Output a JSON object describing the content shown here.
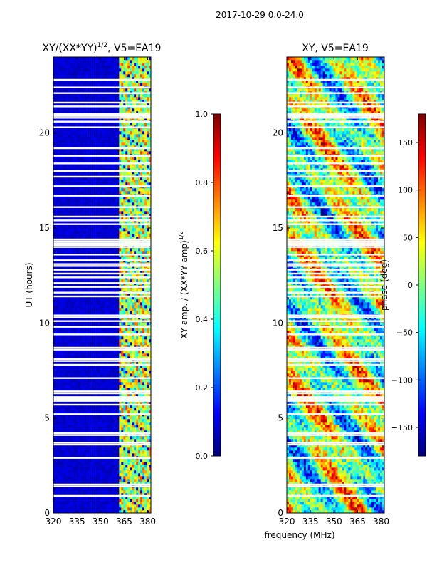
{
  "suptitle": "2017-10-29 0.0-24.0",
  "shared_xlabel": "frequency (MHz)",
  "colors": {
    "jet_stops": [
      "#00007f",
      "#0000ff",
      "#007fff",
      "#00ffff",
      "#7fff7f",
      "#ffff00",
      "#ff7f00",
      "#ff0000",
      "#7f0000"
    ],
    "gap": "#ffffff",
    "frame": "#000000"
  },
  "chart_data": [
    {
      "type": "heatmap",
      "title": "XY/(XX*YY)",
      "title_exponent": "1/2",
      "title_suffix": ", V5=EA19",
      "xlabel": "",
      "ylabel": "UT (hours)",
      "xlim": [
        320,
        382
      ],
      "ylim": [
        0,
        24
      ],
      "x_ticks": [
        320,
        335,
        350,
        365,
        380
      ],
      "y_ticks": [
        0,
        5,
        10,
        15,
        20
      ],
      "grid": false,
      "colorbar": {
        "label": "XY amp. / (XX*YY amp)",
        "label_exponent": "1/2",
        "range": [
          0.0,
          1.0
        ],
        "ticks": [
          "0.0",
          "0.2",
          "0.4",
          "0.6",
          "0.8",
          "1.0"
        ],
        "colormap": "jet"
      },
      "description_values": {
        "background_level": 0.05,
        "active_band_mhz": [
          362,
          382
        ],
        "active_level_range": [
          0.2,
          0.85
        ]
      }
    },
    {
      "type": "heatmap",
      "title": "XY, V5=EA19",
      "xlabel": "frequency (MHz)",
      "ylabel": "",
      "xlim": [
        320,
        382
      ],
      "ylim": [
        0,
        24
      ],
      "x_ticks": [
        320,
        335,
        350,
        365,
        380
      ],
      "y_ticks": [
        0,
        5,
        10,
        15,
        20
      ],
      "grid": false,
      "colorbar": {
        "label": "phase (deg)",
        "range": [
          -180,
          180
        ],
        "ticks": [
          "−150",
          "−100",
          "−50",
          "0",
          "50",
          "100",
          "150"
        ],
        "colormap": "jet"
      }
    }
  ],
  "flagged_gaps_hours": [
    0.9,
    1.4,
    1.5,
    2.9,
    3.6,
    3.7,
    4.1,
    4.2,
    5.2,
    5.7,
    5.9,
    6.0,
    6.1,
    6.3,
    6.4,
    7.1,
    7.8,
    8.0,
    8.1,
    8.6,
    8.7,
    9.4,
    9.8,
    10.1,
    10.3,
    10.4,
    11.4,
    11.6,
    11.9,
    12.1,
    12.4,
    12.6,
    12.8,
    13.0,
    13.1,
    13.3,
    13.6,
    14.0,
    14.1,
    14.2,
    14.3,
    14.4,
    15.2,
    15.4,
    15.6,
    16.1,
    16.7,
    17.2,
    17.7,
    18.0,
    18.4,
    18.8,
    19.2,
    20.3,
    20.6,
    20.8,
    20.9,
    21.0,
    21.4,
    21.6,
    22.1,
    22.4,
    22.8
  ]
}
